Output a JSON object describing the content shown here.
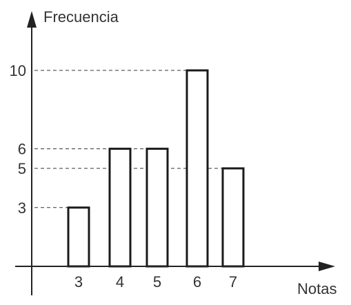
{
  "chart_data": {
    "type": "bar",
    "categories": [
      "3",
      "4",
      "5",
      "6",
      "7"
    ],
    "values": [
      3,
      6,
      6,
      10,
      5
    ],
    "title": "",
    "xlabel": "Notas",
    "ylabel": "Frecuencia",
    "y_ticks": [
      3,
      5,
      6,
      10
    ],
    "guide_lines": true,
    "grid": false,
    "legend": "none",
    "colors": {
      "bar_fill": "#ffffff",
      "bar_stroke": "#1a1a1a",
      "axis": "#222222",
      "text": "#333333"
    }
  }
}
